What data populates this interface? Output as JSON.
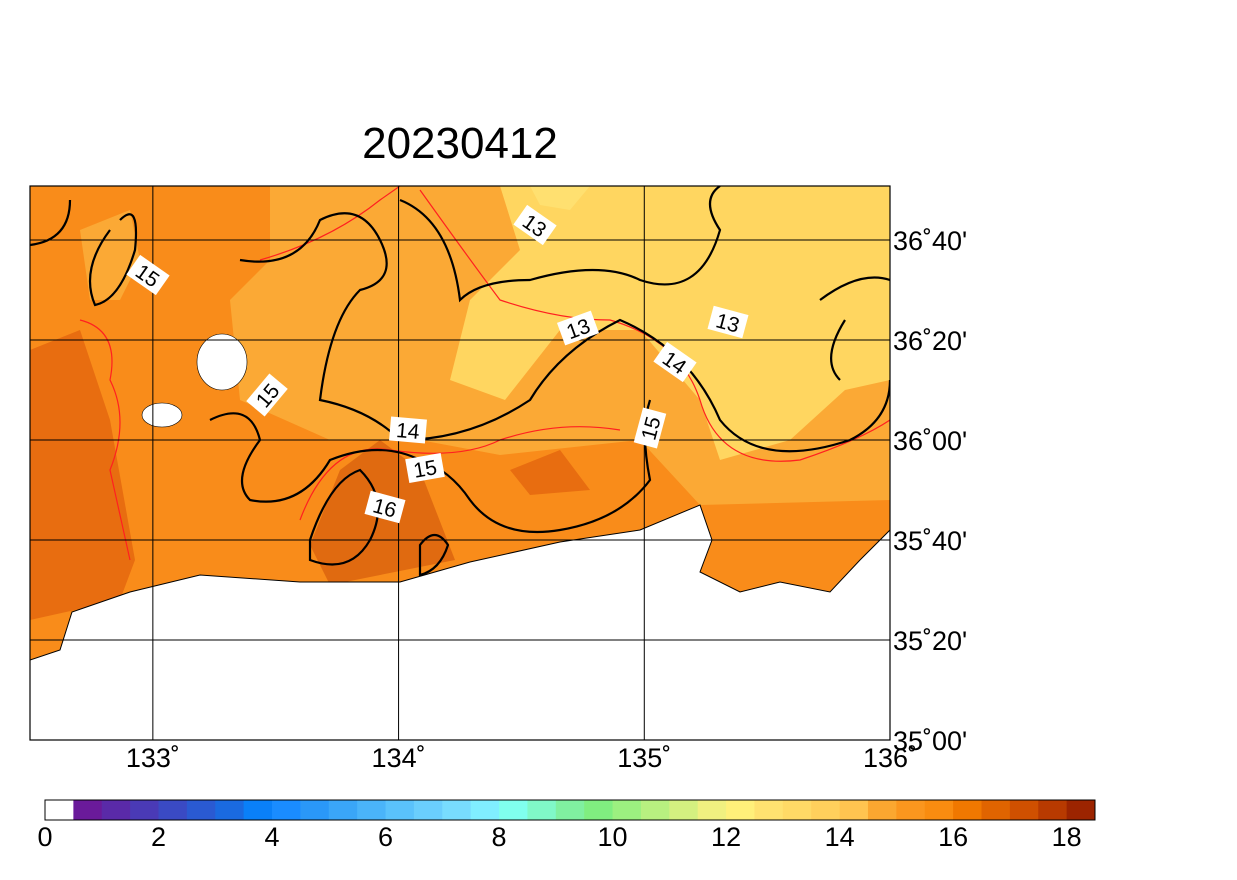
{
  "title": "20230412",
  "map": {
    "xlim": [
      132.5,
      136
    ],
    "ylim": [
      35,
      36.8467
    ],
    "lon_ticks": [
      {
        "value": 133,
        "label": "133˚"
      },
      {
        "value": 134,
        "label": "134˚"
      },
      {
        "value": 135,
        "label": "135˚"
      },
      {
        "value": 136,
        "label": "136˚"
      }
    ],
    "lat_ticks": [
      {
        "value": 35,
        "label": "35˚00'"
      },
      {
        "value": 35.3333,
        "label": "35˚20'"
      },
      {
        "value": 35.6667,
        "label": "35˚40'"
      },
      {
        "value": 36,
        "label": "36˚00'"
      },
      {
        "value": 36.3333,
        "label": "36˚20'"
      },
      {
        "value": 36.6667,
        "label": "36˚40'"
      }
    ],
    "grid": true,
    "contour_labels": [
      15,
      13,
      13,
      13,
      14,
      15,
      14,
      15,
      15,
      16
    ]
  },
  "colorbar": {
    "range": [
      0,
      18.5
    ],
    "ticks": [
      0,
      2,
      4,
      6,
      8,
      10,
      12,
      14,
      16,
      18
    ],
    "colors": [
      "#ffffff",
      "#6a1a9a",
      "#5a2aa8",
      "#4a3ab6",
      "#3a4ac4",
      "#2a5ad2",
      "#1a6ae0",
      "#0a80f8",
      "#1a8cff",
      "#2a98f8",
      "#3aa6f8",
      "#4ab4fa",
      "#5ac2fc",
      "#6acefd",
      "#78dcfe",
      "#80eeff",
      "#80ffee",
      "#80f8c8",
      "#80f0a0",
      "#80ee80",
      "#9cf080",
      "#b8f080",
      "#d4f080",
      "#f0f080",
      "#fff07a",
      "#ffe270",
      "#ffda66",
      "#ffd05c",
      "#ffc450",
      "#fba730",
      "#fb961e",
      "#f98c10",
      "#f07800",
      "#e06400",
      "#d05000",
      "#b83a00",
      "#9c2400"
    ]
  }
}
